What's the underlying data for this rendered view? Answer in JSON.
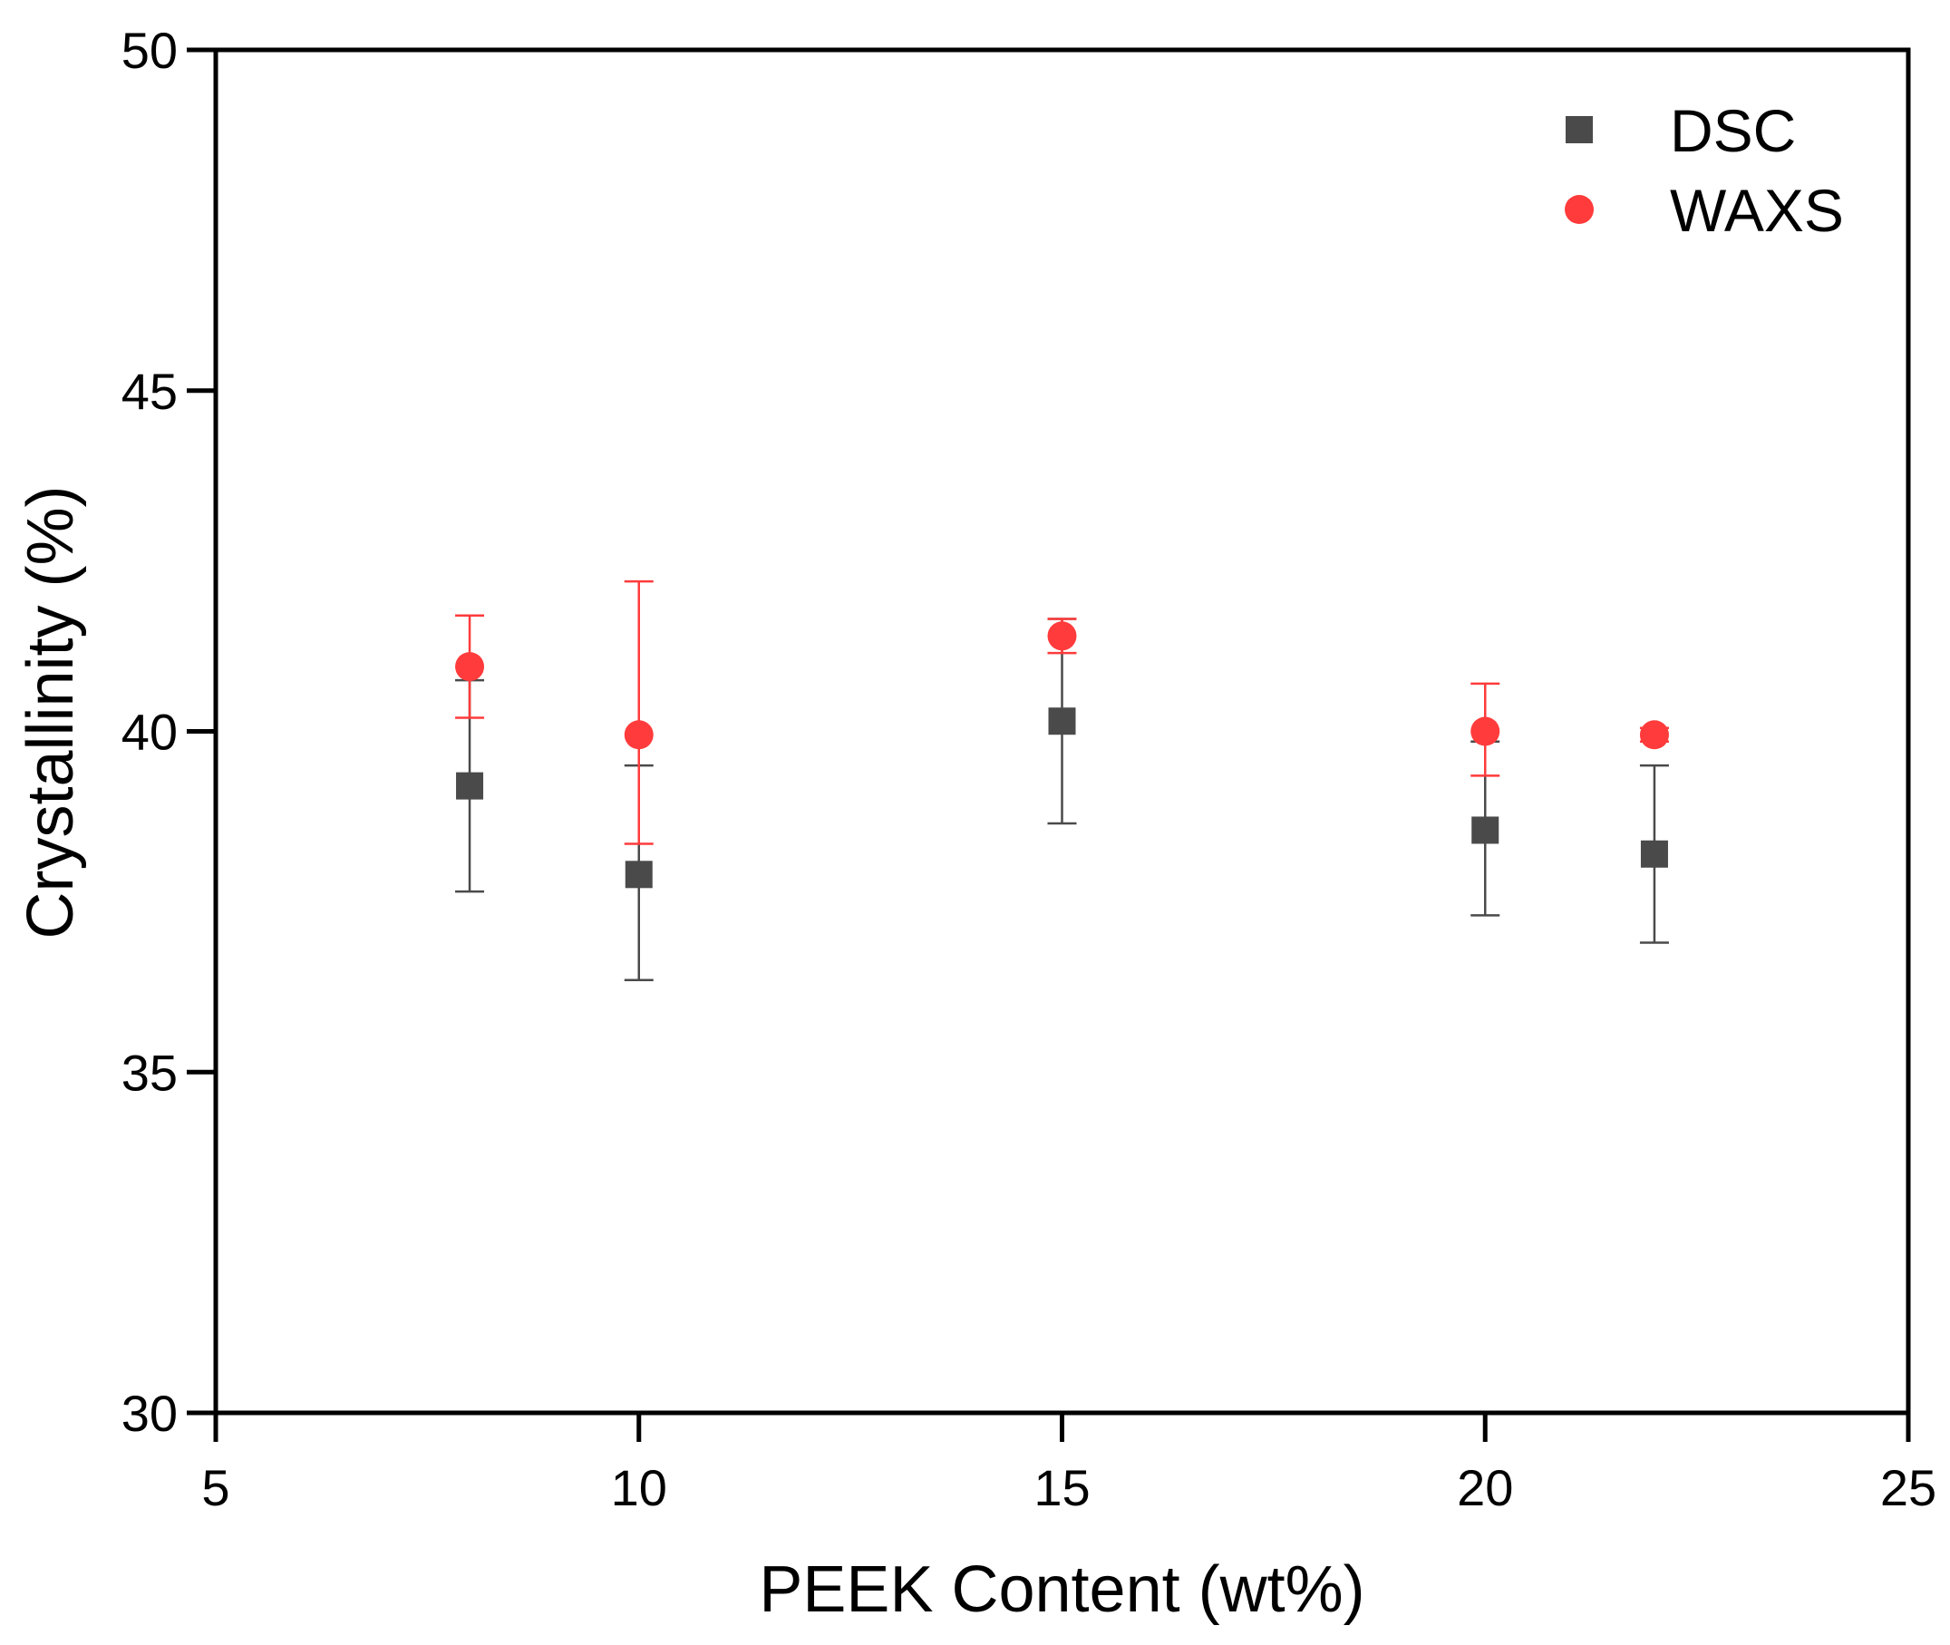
{
  "chart_data": {
    "type": "scatter",
    "title": "",
    "xlabel": "PEEK Content (wt%)",
    "ylabel": "Crystallinity (%)",
    "xlim": [
      5,
      25
    ],
    "ylim": [
      30,
      50
    ],
    "xticks": [
      5,
      10,
      15,
      20,
      25
    ],
    "yticks": [
      30,
      35,
      40,
      45,
      50
    ],
    "xtick_labels": [
      "5",
      "10",
      "15",
      "20",
      "25"
    ],
    "ytick_labels": [
      "30",
      "35",
      "40",
      "45",
      "50"
    ],
    "grid": false,
    "legend_position": "top-right",
    "series": [
      {
        "name": "DSC",
        "marker": "square",
        "color": "#4a4a4a",
        "x": [
          8,
          10,
          15,
          20,
          22
        ],
        "y": [
          39.2,
          37.9,
          40.15,
          38.55,
          38.2
        ],
        "err_low": [
          1.55,
          1.55,
          1.5,
          1.25,
          1.3
        ],
        "err_high": [
          1.55,
          1.6,
          1.5,
          1.3,
          1.3
        ]
      },
      {
        "name": "WAXS",
        "marker": "circle",
        "color": "#ff3b3b",
        "x": [
          8,
          10,
          15,
          20,
          22
        ],
        "y": [
          40.95,
          39.95,
          41.4,
          40.0,
          39.95
        ],
        "err_low": [
          0.75,
          1.6,
          0.25,
          0.65,
          0.1
        ],
        "err_high": [
          0.75,
          2.25,
          0.25,
          0.7,
          0.1
        ]
      }
    ]
  }
}
